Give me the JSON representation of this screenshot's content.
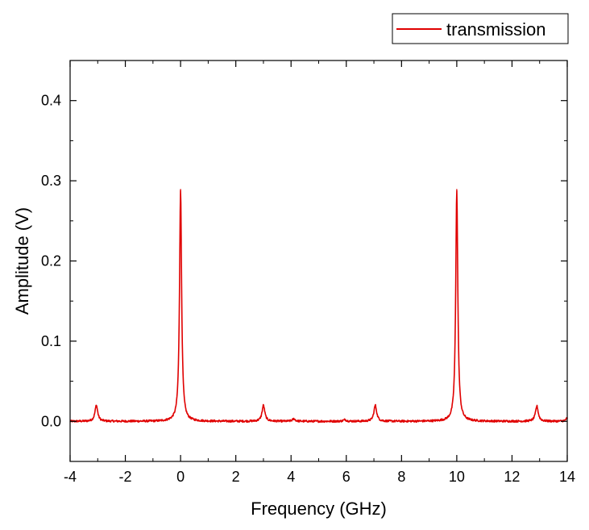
{
  "chart_data": {
    "type": "line",
    "xlabel": "Frequency (GHz)",
    "ylabel": "Amplitude (V)",
    "xlim": [
      -4,
      14
    ],
    "ylim": [
      -0.05,
      0.45
    ],
    "x_ticks": [
      -4,
      -2,
      0,
      2,
      4,
      6,
      8,
      10,
      12,
      14
    ],
    "x_tick_labels": [
      "-4",
      "-2",
      "0",
      "2",
      "4",
      "6",
      "8",
      "10",
      "12",
      "14"
    ],
    "y_ticks": [
      0.0,
      0.1,
      0.2,
      0.3,
      0.4
    ],
    "y_tick_labels": [
      "0.0",
      "0.1",
      "0.2",
      "0.3",
      "0.4"
    ],
    "grid": false,
    "legend_position": "top-right, outside plot",
    "series": [
      {
        "name": "transmission",
        "color": "#e00000",
        "baseline": 0.0,
        "peaks": [
          {
            "x": -3.05,
            "y": 0.02
          },
          {
            "x": 0.0,
            "y": 0.289
          },
          {
            "x": 3.0,
            "y": 0.02
          },
          {
            "x": 4.1,
            "y": 0.003
          },
          {
            "x": 5.95,
            "y": 0.002
          },
          {
            "x": 7.05,
            "y": 0.02
          },
          {
            "x": 10.0,
            "y": 0.289
          },
          {
            "x": 12.9,
            "y": 0.019
          },
          {
            "x": 14.0,
            "y": 0.004
          }
        ]
      }
    ]
  }
}
